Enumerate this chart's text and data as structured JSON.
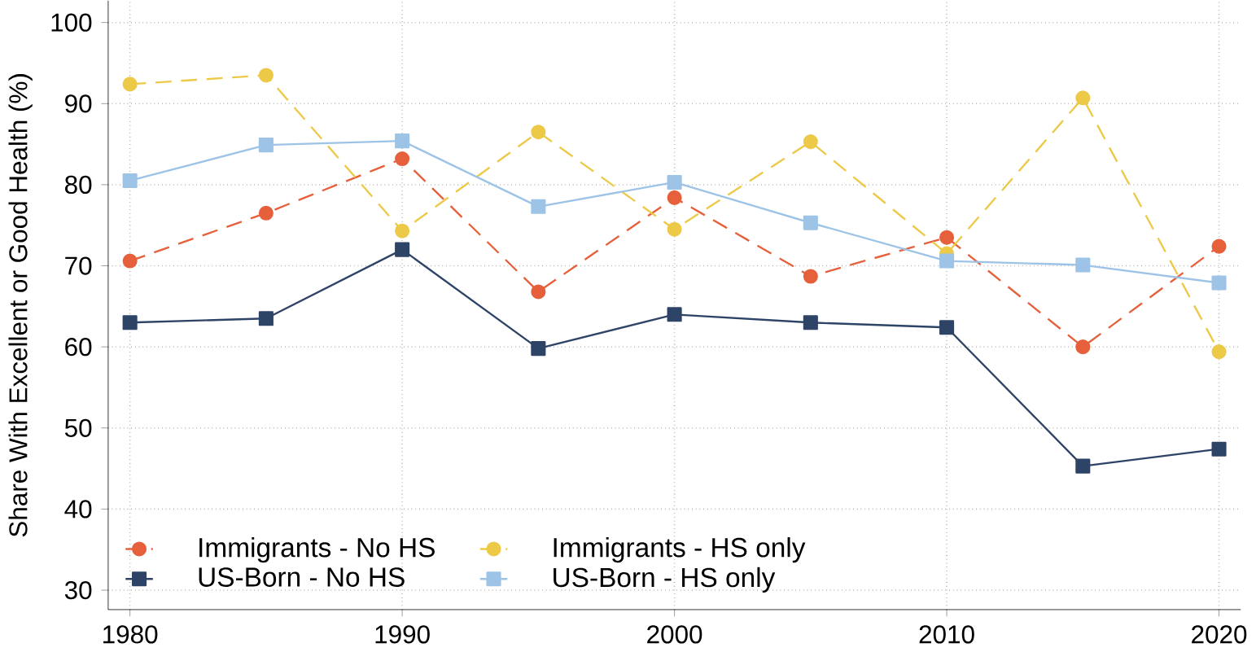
{
  "chart_data": {
    "type": "line",
    "ylabel": "Share With Excellent or Good Health (%)",
    "x": [
      1980,
      1985,
      1990,
      1995,
      2000,
      2005,
      2010,
      2015,
      2020
    ],
    "xlim": [
      1979.2,
      2020.8
    ],
    "xticks": [
      1980,
      1990,
      2000,
      2010,
      2020
    ],
    "ylim": [
      27.6,
      102.7
    ],
    "yticks": [
      30,
      40,
      50,
      60,
      70,
      80,
      90,
      100
    ],
    "grid": true,
    "legend": "bottom",
    "series": [
      {
        "name": "Immigrants - No HS",
        "color": "#e5603b",
        "marker": "circle",
        "line_style": "dashed",
        "values": [
          70.6,
          76.5,
          83.2,
          66.8,
          78.4,
          68.7,
          73.5,
          60.0,
          72.4
        ]
      },
      {
        "name": "Immigrants - HS only",
        "color": "#edc948",
        "marker": "circle",
        "line_style": "dashed",
        "values": [
          92.4,
          93.5,
          74.3,
          86.5,
          74.5,
          85.3,
          71.5,
          90.7,
          59.4
        ]
      },
      {
        "name": "US-Born - No HS",
        "color": "#2e4467",
        "marker": "square",
        "line_style": "solid",
        "values": [
          63.0,
          63.5,
          72.0,
          59.8,
          64.0,
          63.0,
          62.4,
          45.3,
          47.4
        ]
      },
      {
        "name": "US-Born - HS only",
        "color": "#9dc3e6",
        "marker": "square",
        "line_style": "solid",
        "values": [
          80.5,
          84.9,
          85.4,
          77.3,
          80.3,
          75.3,
          70.6,
          70.1,
          67.9
        ]
      }
    ]
  }
}
